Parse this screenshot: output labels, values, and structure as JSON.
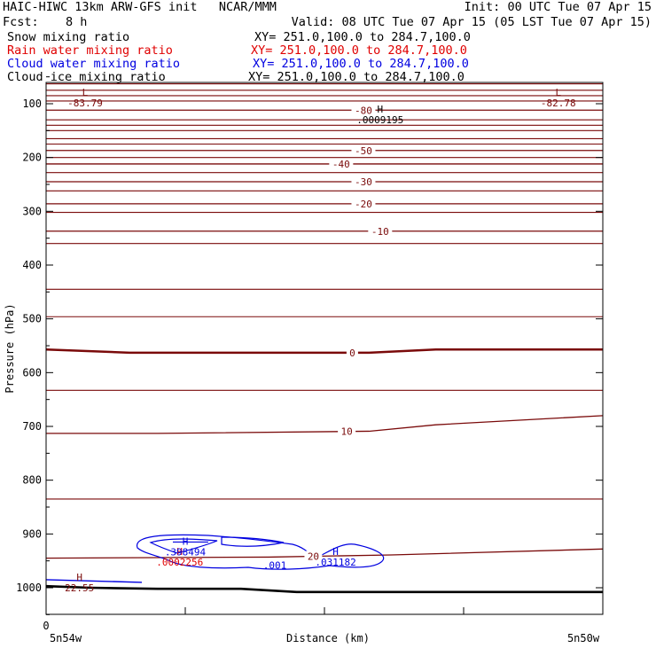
{
  "header": {
    "title": "HAIC-HIWC 13km ARW-GFS init   NCAR/MMM",
    "init": "Init: 00 UTC Tue 07 Apr 15",
    "fcst_label": "Fcst:",
    "fcst_value": "8 h",
    "valid": "Valid: 08 UTC Tue 07 Apr 15 (05 LST Tue 07 Apr 15)"
  },
  "fields": [
    {
      "name": "Snow mixing ratio",
      "xy": "XY= 251.0,100.0 to 284.7,100.0",
      "color": "#000000"
    },
    {
      "name": "Rain water mixing ratio",
      "xy": "XY= 251.0,100.0 to 284.7,100.0",
      "color": "#e00000"
    },
    {
      "name": "Cloud water mixing ratio",
      "xy": "XY= 251.0,100.0 to 284.7,100.0",
      "color": "#0000e0"
    },
    {
      "name": "Cloud ice mixing ratio",
      "xy": "XY= 251.0,100.0 to 284.7,100.0",
      "color": "#000000"
    }
  ],
  "chart_data": {
    "type": "line",
    "title": "",
    "xlabel": "Distance (km)",
    "ylabel": "Pressure (hPa)",
    "x_origin_label": "0",
    "x_end_labels": [
      "5n54w",
      "5n50w"
    ],
    "yticks": [
      100,
      200,
      300,
      400,
      500,
      600,
      700,
      800,
      900,
      1000
    ],
    "xlim": [
      0,
      1
    ],
    "ylim": [
      1050,
      50
    ],
    "temperature_color": "#7a0a0a",
    "temperature_contours": [
      {
        "label": "-80",
        "x": [
          0,
          1
        ],
        "y": [
          112,
          112
        ]
      },
      {
        "label": "-50",
        "x": [
          0,
          1
        ],
        "y": [
          187,
          187
        ]
      },
      {
        "label": "-40",
        "x": [
          0,
          1
        ],
        "y": [
          212,
          212
        ]
      },
      {
        "label": "-30",
        "x": [
          0,
          1
        ],
        "y": [
          245,
          245
        ]
      },
      {
        "label": "-20",
        "x": [
          0,
          1
        ],
        "y": [
          286,
          286
        ]
      },
      {
        "label": "-10",
        "x": [
          0,
          1
        ],
        "y": [
          337,
          337
        ]
      },
      {
        "label": "0",
        "x": [
          0,
          0.15,
          0.4,
          0.58,
          0.7,
          1
        ],
        "y": [
          557,
          563,
          563,
          563,
          557,
          557
        ]
      },
      {
        "label": "10",
        "x": [
          0,
          0.2,
          0.58,
          0.7,
          1
        ],
        "y": [
          713,
          713,
          709,
          697,
          680
        ]
      },
      {
        "label": "20",
        "x": [
          0,
          0.4,
          0.62,
          1
        ],
        "y": [
          945,
          943,
          939,
          928
        ]
      }
    ],
    "temperature_unlabeled_levels": [
      63,
      75,
      85,
      95,
      130,
      140,
      150,
      165,
      175,
      200,
      228,
      262,
      302,
      360,
      445,
      496,
      633,
      835
    ],
    "surface_pressure": {
      "x": [
        0,
        0.08,
        0.2,
        0.35,
        0.45,
        0.6,
        1
      ],
      "y": [
        997,
        1000,
        1002,
        1002,
        1008,
        1008,
        1008
      ]
    },
    "highs_lows": [
      {
        "kind": "L",
        "value": "-83.79",
        "x": 0.07,
        "y": 98
      },
      {
        "kind": "L",
        "value": "-82.78",
        "x": 0.92,
        "y": 98
      },
      {
        "kind": "H",
        "value": ".0009195",
        "x": 0.6,
        "y": 130
      },
      {
        "kind": "H",
        "value": "22.55",
        "x": 0.06,
        "y": 1000
      },
      {
        "kind": "H",
        "value": ".0002256",
        "x": 0.24,
        "y": 952
      },
      {
        "kind": "H",
        "value": ".398494",
        "x": 0.25,
        "y": 933
      },
      {
        "kind": "H",
        "value": ".031182",
        "x": 0.52,
        "y": 952
      }
    ],
    "cloud_water_contour_labels": [
      ".001"
    ]
  }
}
